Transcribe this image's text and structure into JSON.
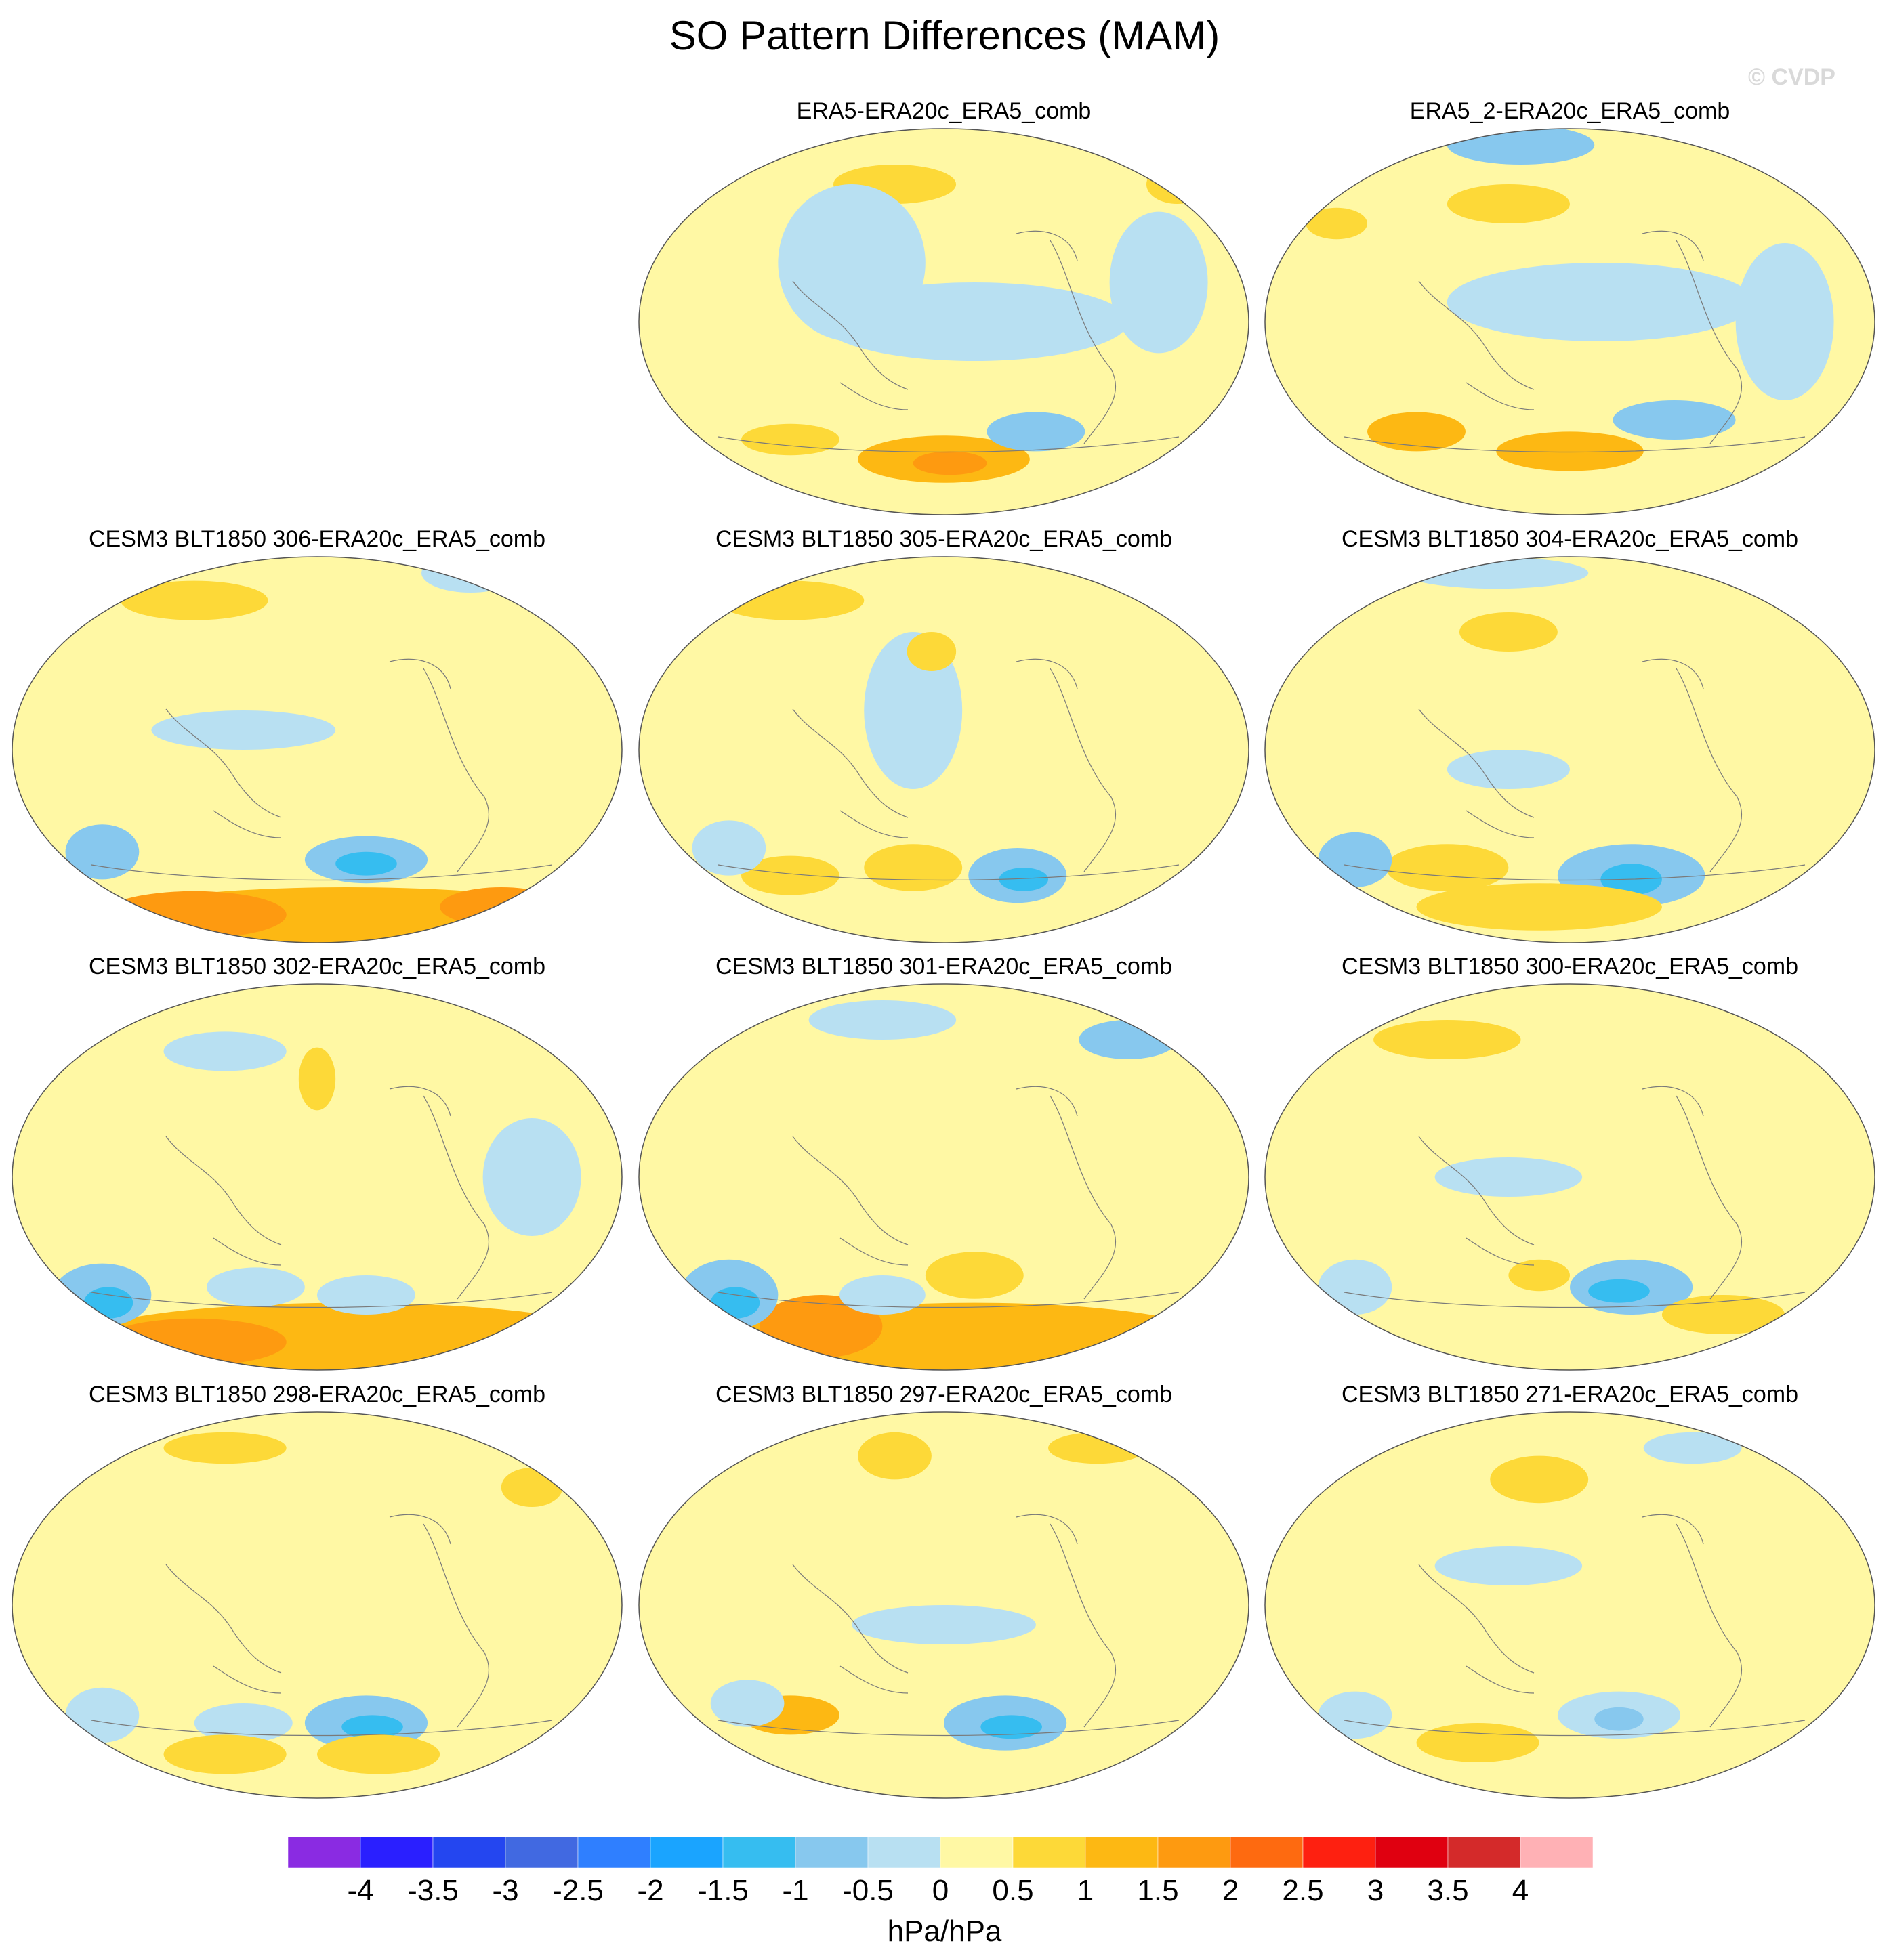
{
  "title": "SO Pattern Differences (MAM)",
  "credit": "© CVDP",
  "panels": [
    {
      "label": "ERA5-ERA20c_ERA5_comb",
      "variant": 0
    },
    {
      "label": "ERA5_2-ERA20c_ERA5_comb",
      "variant": 1
    },
    {
      "label": "CESM3 BLT1850 306-ERA20c_ERA5_comb",
      "variant": 2
    },
    {
      "label": "CESM3 BLT1850 305-ERA20c_ERA5_comb",
      "variant": 3
    },
    {
      "label": "CESM3 BLT1850 304-ERA20c_ERA5_comb",
      "variant": 4
    },
    {
      "label": "CESM3 BLT1850 302-ERA20c_ERA5_comb",
      "variant": 5
    },
    {
      "label": "CESM3 BLT1850 301-ERA20c_ERA5_comb",
      "variant": 6
    },
    {
      "label": "CESM3 BLT1850 300-ERA20c_ERA5_comb",
      "variant": 7
    },
    {
      "label": "CESM3 BLT1850 298-ERA20c_ERA5_comb",
      "variant": 8
    },
    {
      "label": "CESM3 BLT1850 297-ERA20c_ERA5_comb",
      "variant": 9
    },
    {
      "label": "CESM3 BLT1850 271-ERA20c_ERA5_comb",
      "variant": 10
    }
  ],
  "colorbar": {
    "colors": [
      "#8a2be2",
      "#2a1fff",
      "#2446f0",
      "#4169e1",
      "#2f7fff",
      "#1aa4ff",
      "#36bdf0",
      "#87c8ee",
      "#b8e0f2",
      "#fff8a4",
      "#fdd938",
      "#fdb813",
      "#fe9a10",
      "#fe6a10",
      "#fe2010",
      "#e00010",
      "#d42a2a",
      "#ffb1b5"
    ],
    "levels": [
      "-4",
      "-3.5",
      "-3",
      "-2.5",
      "-2",
      "-1.5",
      "-1",
      "-0.5",
      "0",
      "0.5",
      "1",
      "1.5",
      "2",
      "2.5",
      "3",
      "3.5",
      "4"
    ],
    "units": "hPa/hPa"
  }
}
